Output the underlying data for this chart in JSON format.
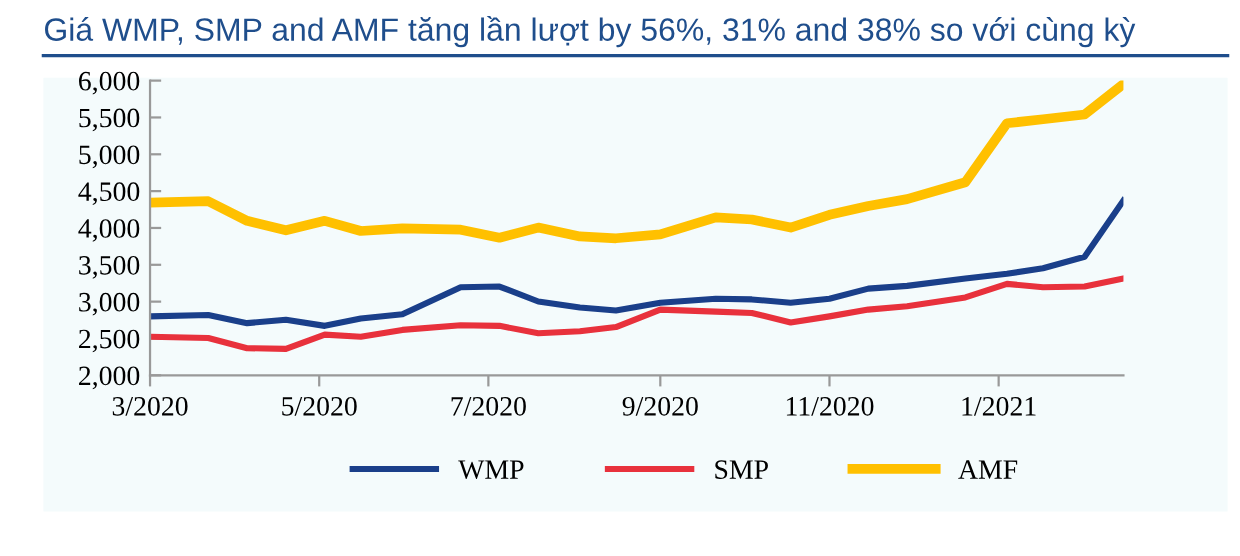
{
  "chart_data": {
    "type": "line",
    "title": "Giá WMP, SMP and AMF tăng lần lượt by 56%, 31% and 38% so với cùng kỳ",
    "x": [
      "2020-03-01",
      "2020-03-22",
      "2020-04-05",
      "2020-04-19",
      "2020-05-03",
      "2020-05-16",
      "2020-05-31",
      "2020-06-21",
      "2020-07-05",
      "2020-07-19",
      "2020-08-03",
      "2020-08-16",
      "2020-09-01",
      "2020-09-21",
      "2020-10-04",
      "2020-10-18",
      "2020-11-01",
      "2020-11-15",
      "2020-11-29",
      "2020-12-20",
      "2021-01-04",
      "2021-01-17",
      "2021-02-01",
      "2021-02-15"
    ],
    "series": [
      {
        "name": "WMP",
        "color": "#1a3f8a",
        "values": [
          2800,
          2818,
          2708,
          2754,
          2671,
          2772,
          2828,
          3195,
          3205,
          3002,
          2920,
          2880,
          2984,
          3039,
          3030,
          2984,
          3039,
          3177,
          3214,
          3315,
          3379,
          3453,
          3609,
          4372
        ]
      },
      {
        "name": "SMP",
        "color": "#e8313c",
        "values": [
          2524,
          2506,
          2368,
          2359,
          2552,
          2524,
          2616,
          2680,
          2671,
          2570,
          2598,
          2655,
          2892,
          2864,
          2846,
          2717,
          2800,
          2892,
          2938,
          3057,
          3241,
          3195,
          3205,
          3315
        ]
      },
      {
        "name": "AMF",
        "color": "#ffc000",
        "values": [
          4345,
          4363,
          4097,
          3968,
          4097,
          3959,
          3995,
          3977,
          3867,
          4005,
          3885,
          3860,
          3913,
          4143,
          4115,
          4005,
          4179,
          4299,
          4391,
          4621,
          5421,
          5476,
          5540,
          5954
        ]
      }
    ],
    "xlim": [
      "2020-03-01",
      "2021-02-15"
    ],
    "xticks": [
      {
        "value": "2020-03-01",
        "label": "3/2020"
      },
      {
        "value": "2020-05-01",
        "label": "5/2020"
      },
      {
        "value": "2020-07-01",
        "label": "7/2020"
      },
      {
        "value": "2020-09-01",
        "label": "9/2020"
      },
      {
        "value": "2020-11-01",
        "label": "11/2020"
      },
      {
        "value": "2021-01-01",
        "label": "1/2021"
      }
    ],
    "ylim": [
      2000,
      6000
    ],
    "yticks": [
      {
        "value": 2000,
        "label": "2,000"
      },
      {
        "value": 2500,
        "label": "2,500"
      },
      {
        "value": 3000,
        "label": "3,000"
      },
      {
        "value": 3500,
        "label": "3,500"
      },
      {
        "value": 4000,
        "label": "4,000"
      },
      {
        "value": 4500,
        "label": "4,500"
      },
      {
        "value": 5000,
        "label": "5,000"
      },
      {
        "value": 5500,
        "label": "5,500"
      },
      {
        "value": 6000,
        "label": "6,000"
      }
    ],
    "grid": false,
    "legend": "bottom",
    "marker": "none",
    "line_style": "solid"
  }
}
